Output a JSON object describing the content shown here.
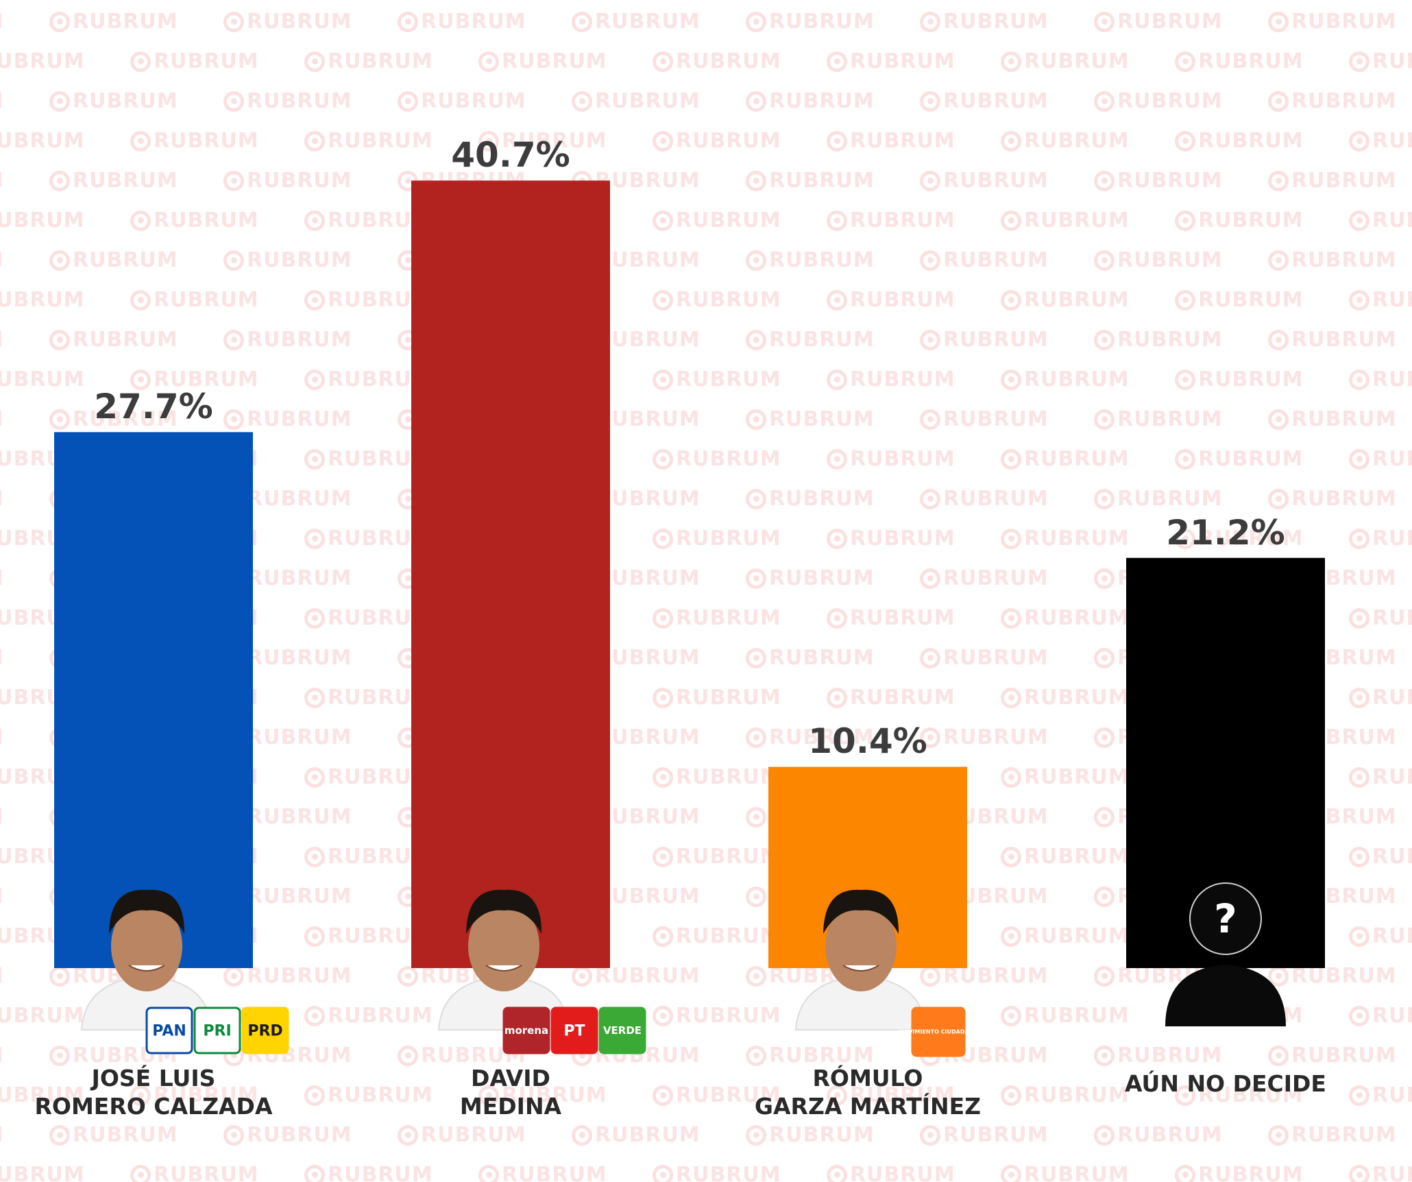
{
  "watermark": {
    "text": "RUBRUM",
    "icon": "rubrum-logo-icon",
    "color": "#fbe3e3"
  },
  "chart_data": {
    "type": "bar",
    "title": "",
    "xlabel": "",
    "ylabel": "",
    "ylim": [
      0,
      45
    ],
    "grid": false,
    "legend": "none",
    "categories": [
      [
        "JOSÉ LUIS",
        "ROMERO CALZADA"
      ],
      [
        "DAVID",
        "MEDINA"
      ],
      [
        "RÓMULO",
        "GARZA MARTÍNEZ"
      ],
      [
        "AÚN NO DECIDE"
      ]
    ],
    "values": [
      27.7,
      40.7,
      10.4,
      21.2
    ],
    "data_labels": [
      "27.7%",
      "40.7%",
      "10.4%",
      "21.2%"
    ],
    "colors": [
      "#0452b8",
      "#b22320",
      "#fd8600",
      "#000000"
    ],
    "parties": [
      [
        {
          "name": "pan-logo-icon",
          "text": "PAN",
          "color": "#0a4aa3"
        },
        {
          "name": "pri-logo-icon",
          "text": "PRI",
          "color": "#0b8a3c"
        },
        {
          "name": "prd-logo-icon",
          "text": "PRD",
          "color": "#ffd400"
        }
      ],
      [
        {
          "name": "morena-logo-icon",
          "text": "morena",
          "color": "#b0252a"
        },
        {
          "name": "pt-logo-icon",
          "text": "PT",
          "color": "#e21b1b"
        },
        {
          "name": "verde-logo-icon",
          "text": "VERDE",
          "color": "#3aa935"
        }
      ],
      [
        {
          "name": "movimiento-ciudadano-logo-icon",
          "text": "MOVIMIENTO CIUDADANO",
          "color": "#ff7a1a"
        }
      ],
      []
    ],
    "avatars": [
      "candidate-photo-icon",
      "candidate-photo-icon",
      "candidate-photo-icon",
      "unknown-person-icon"
    ]
  }
}
